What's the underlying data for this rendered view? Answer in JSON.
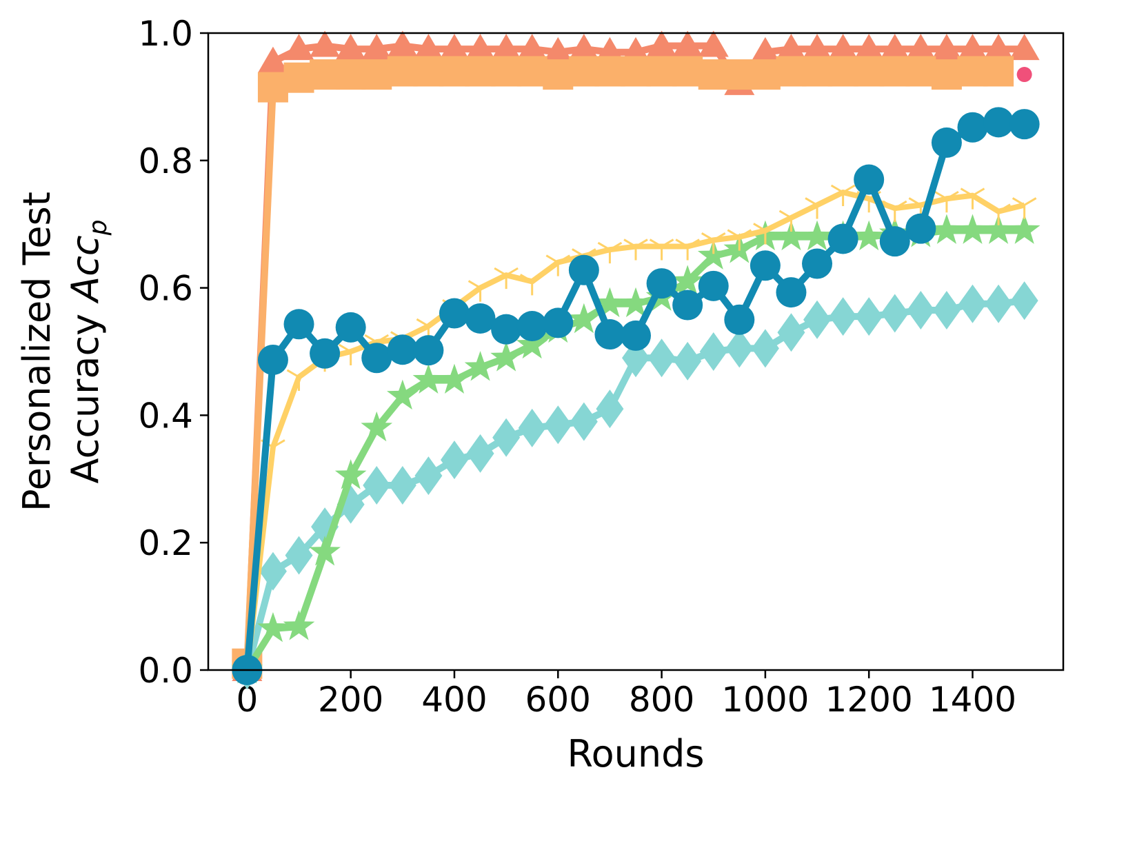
{
  "chart_data": {
    "type": "line",
    "xlabel": "Rounds",
    "ylabel": {
      "line1": "Personalized Test",
      "line2": "Accuracy ",
      "math": "Acc",
      "sub": "p"
    },
    "x": [
      0,
      50,
      100,
      150,
      200,
      250,
      300,
      350,
      400,
      450,
      500,
      550,
      600,
      650,
      700,
      750,
      800,
      850,
      900,
      950,
      1000,
      1050,
      1100,
      1150,
      1200,
      1250,
      1300,
      1350,
      1400,
      1450,
      1500
    ],
    "xlim": [
      -75,
      1575
    ],
    "xticks": [
      0,
      200,
      400,
      600,
      800,
      1000,
      1200,
      1400
    ],
    "ylim": [
      0,
      1
    ],
    "yticks": [
      {
        "value": 0,
        "label": "0.0"
      },
      0.2,
      0.4,
      0.6,
      0.8,
      {
        "value": 1,
        "label": "1.0"
      }
    ],
    "series": [
      {
        "color": "#f4896b",
        "marker": "triangle",
        "values": [
          0,
          0.955,
          0.975,
          0.98,
          0.975,
          0.975,
          0.98,
          0.975,
          0.975,
          0.975,
          0.975,
          0.975,
          0.97,
          0.975,
          0.97,
          0.97,
          0.98,
          0.98,
          0.98,
          0.92,
          0.97,
          0.975,
          0.975,
          0.975,
          0.975,
          0.975,
          0.975,
          0.975,
          0.975,
          0.975,
          0.975
        ]
      },
      {
        "color": "#fbb06a",
        "marker": "square",
        "values": [
          0.01,
          0.915,
          0.93,
          0.935,
          0.935,
          0.935,
          0.94,
          0.94,
          0.94,
          0.94,
          0.94,
          0.94,
          0.935,
          0.94,
          0.94,
          0.94,
          0.94,
          0.94,
          0.935,
          0.935,
          0.935,
          0.94,
          0.94,
          0.94,
          0.94,
          0.94,
          0.94,
          0.935,
          0.94,
          0.94,
          null
        ]
      },
      {
        "color": "#f0507a",
        "marker": "dot",
        "values": [
          null,
          null,
          null,
          null,
          null,
          null,
          null,
          null,
          null,
          null,
          null,
          null,
          null,
          null,
          null,
          null,
          null,
          null,
          null,
          null,
          null,
          null,
          null,
          null,
          null,
          null,
          null,
          null,
          null,
          null,
          0.935
        ]
      },
      {
        "color": "#86d6d4",
        "marker": "diamond",
        "values": [
          0,
          0.155,
          0.18,
          0.225,
          0.26,
          0.29,
          0.29,
          0.305,
          0.33,
          0.34,
          0.365,
          0.38,
          0.385,
          0.39,
          0.41,
          0.49,
          0.49,
          0.485,
          0.5,
          0.505,
          0.505,
          0.53,
          0.55,
          0.555,
          0.555,
          0.56,
          0.565,
          0.565,
          0.575,
          0.575,
          0.58
        ]
      },
      {
        "color": "#85d97f",
        "marker": "star",
        "values": [
          0,
          0.065,
          0.068,
          0.185,
          0.305,
          0.38,
          0.43,
          0.455,
          0.455,
          0.475,
          0.49,
          0.51,
          0.535,
          0.55,
          0.575,
          0.575,
          0.585,
          0.61,
          0.65,
          0.66,
          0.68,
          0.68,
          0.68,
          0.68,
          0.68,
          0.685,
          0.685,
          0.69,
          0.69,
          0.69,
          0.69
        ]
      },
      {
        "color": "#ffd166",
        "marker": "tri",
        "values": [
          0,
          0.35,
          0.46,
          0.49,
          0.5,
          0.515,
          0.52,
          0.54,
          0.57,
          0.6,
          0.62,
          0.61,
          0.64,
          0.65,
          0.66,
          0.665,
          0.665,
          0.665,
          0.675,
          0.68,
          0.69,
          0.71,
          0.73,
          0.75,
          0.74,
          0.725,
          0.73,
          0.74,
          0.745,
          0.72,
          0.73
        ]
      },
      {
        "color": "#118ab2",
        "marker": "circle",
        "values": [
          0,
          0.487,
          0.543,
          0.497,
          0.538,
          0.49,
          0.503,
          0.502,
          0.56,
          0.552,
          0.535,
          0.54,
          0.545,
          0.628,
          0.527,
          0.525,
          0.607,
          0.573,
          0.603,
          0.55,
          0.635,
          0.593,
          0.638,
          0.677,
          0.77,
          0.673,
          0.693,
          0.828,
          0.852,
          0.86,
          0.857
        ]
      }
    ]
  }
}
